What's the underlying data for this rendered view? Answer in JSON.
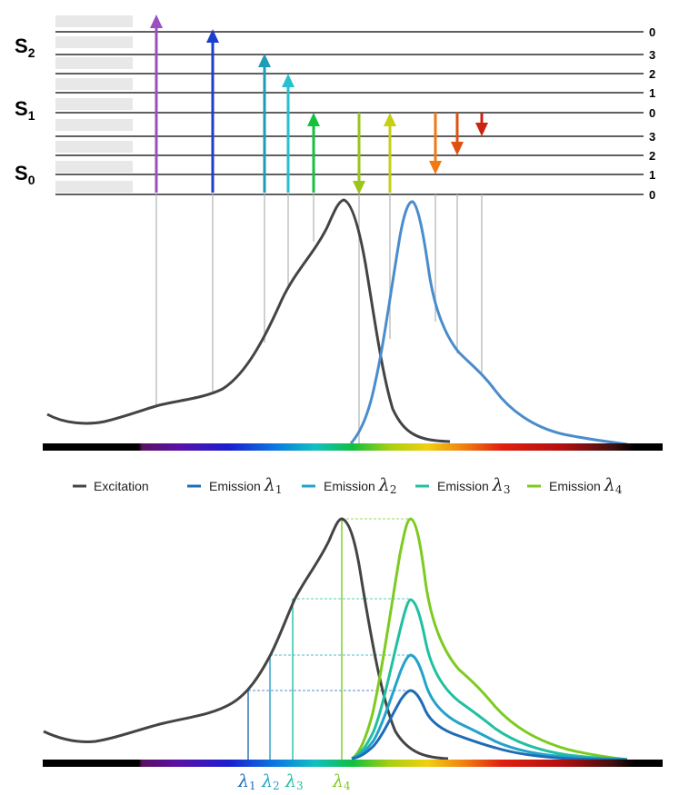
{
  "states": [
    {
      "letter": "S",
      "sub": "2",
      "name": "S2"
    },
    {
      "letter": "S",
      "sub": "1",
      "name": "S1"
    },
    {
      "letter": "S",
      "sub": "0",
      "name": "S0"
    }
  ],
  "vibrational_levels": [
    "0",
    "3",
    "2",
    "1",
    "0",
    "3",
    "2",
    "1",
    "0"
  ],
  "legend": {
    "excitation": "Excitation",
    "emission_prefix": "Emission",
    "lambda_symbol": "λ",
    "items": [
      {
        "label": "Excitation",
        "color": "#444444"
      },
      {
        "label": "Emission",
        "sub": "1",
        "color": "#1f6cb5"
      },
      {
        "label": "Emission",
        "sub": "2",
        "color": "#22a3c9"
      },
      {
        "label": "Emission",
        "sub": "3",
        "color": "#20c0a0"
      },
      {
        "label": "Emission",
        "sub": "4",
        "color": "#7ccb20"
      }
    ]
  },
  "wavelength_markers": [
    {
      "symbol": "λ",
      "sub": "1",
      "color": "#1f6cb5"
    },
    {
      "symbol": "λ",
      "sub": "2",
      "color": "#22a3c9"
    },
    {
      "symbol": "λ",
      "sub": "3",
      "color": "#20c0a0"
    },
    {
      "symbol": "λ",
      "sub": "4",
      "color": "#7ccb20"
    }
  ],
  "colors": {
    "excitation_curve": "#444444",
    "emission_curve": "#4a8ccc",
    "arrows_up": [
      "#9b4fc0",
      "#1c3fcc",
      "#1f9bb5",
      "#27c0cf",
      "#18c040",
      "#c7cf14"
    ],
    "arrows_down": [
      "#9ac61a",
      "#f07a10",
      "#e05010",
      "#cc2410"
    ]
  }
}
